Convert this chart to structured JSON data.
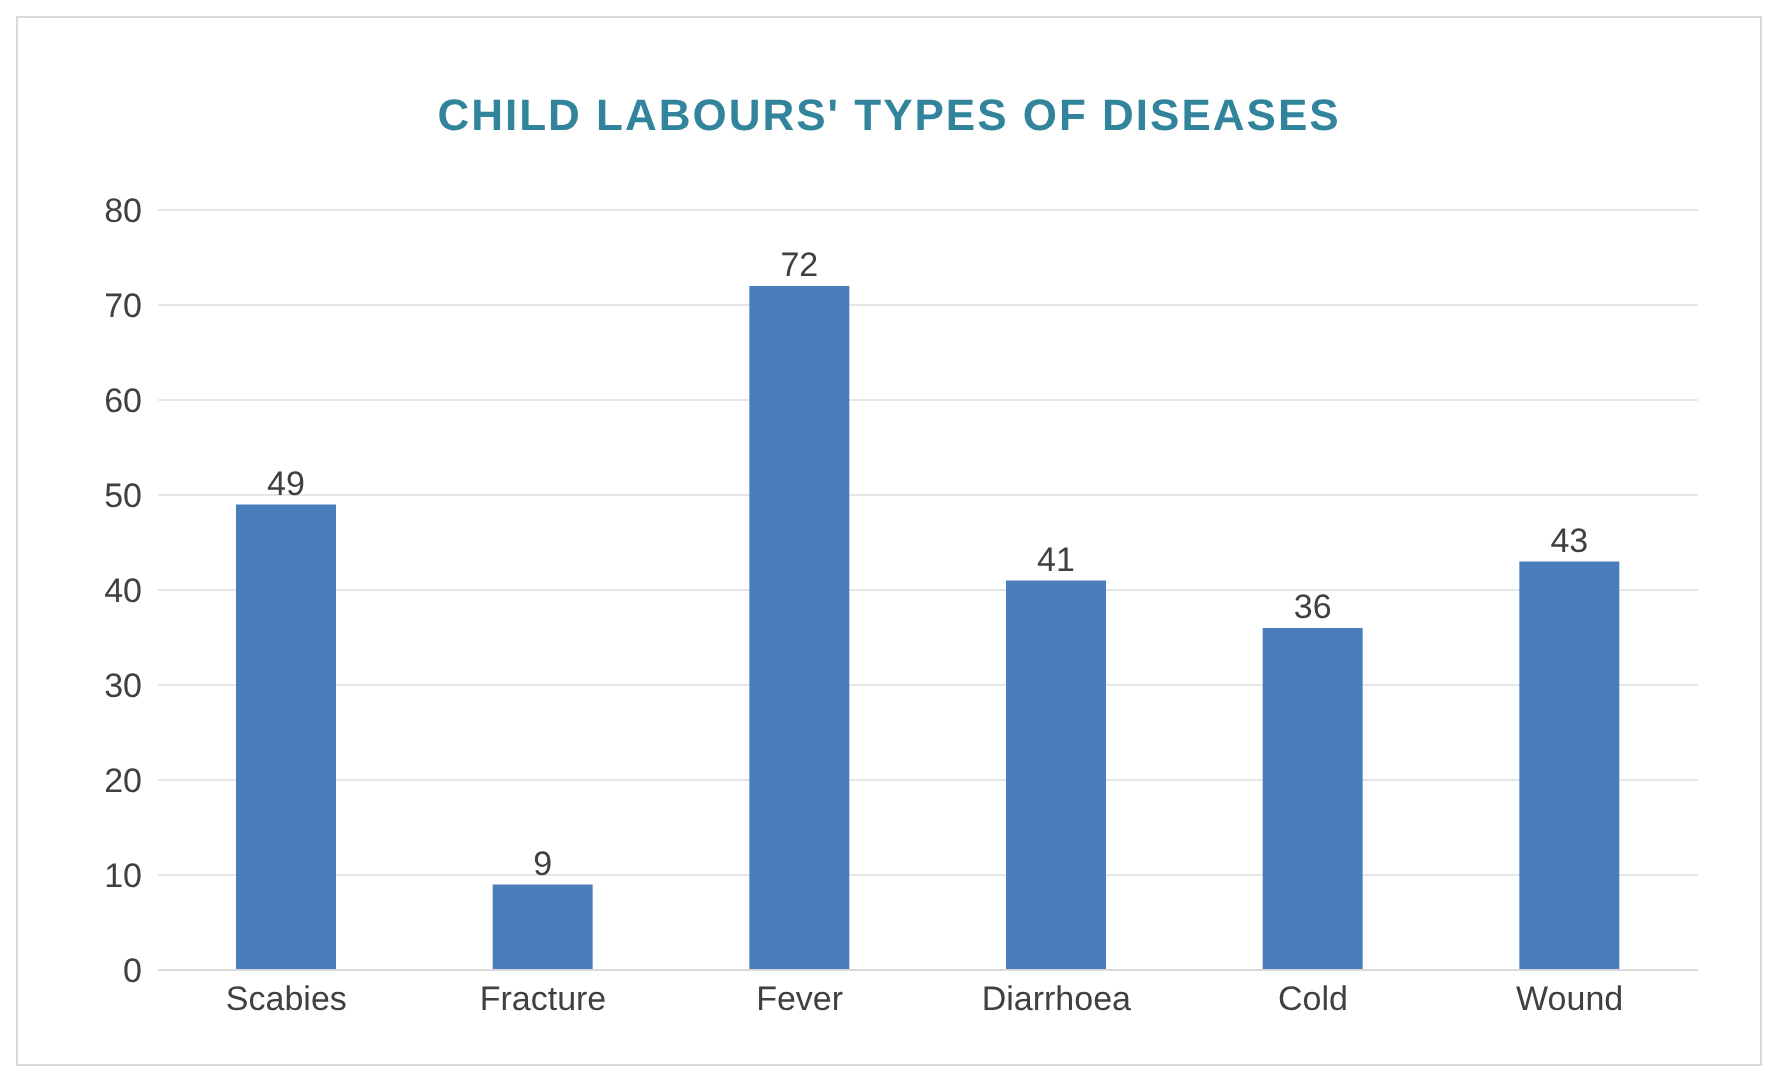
{
  "chart_data": {
    "type": "bar",
    "title": "CHILD LABOURS' TYPES OF DISEASES",
    "categories": [
      "Scabies",
      "Fracture",
      "Fever",
      "Diarrhoea",
      "Cold",
      "Wound"
    ],
    "values": [
      49,
      9,
      72,
      41,
      36,
      43
    ],
    "color": "#4a7ebb",
    "ylim": [
      0,
      80
    ],
    "yticks": [
      0,
      10,
      20,
      30,
      40,
      50,
      60,
      70,
      80
    ],
    "grid": "y",
    "data_labels": true
  }
}
